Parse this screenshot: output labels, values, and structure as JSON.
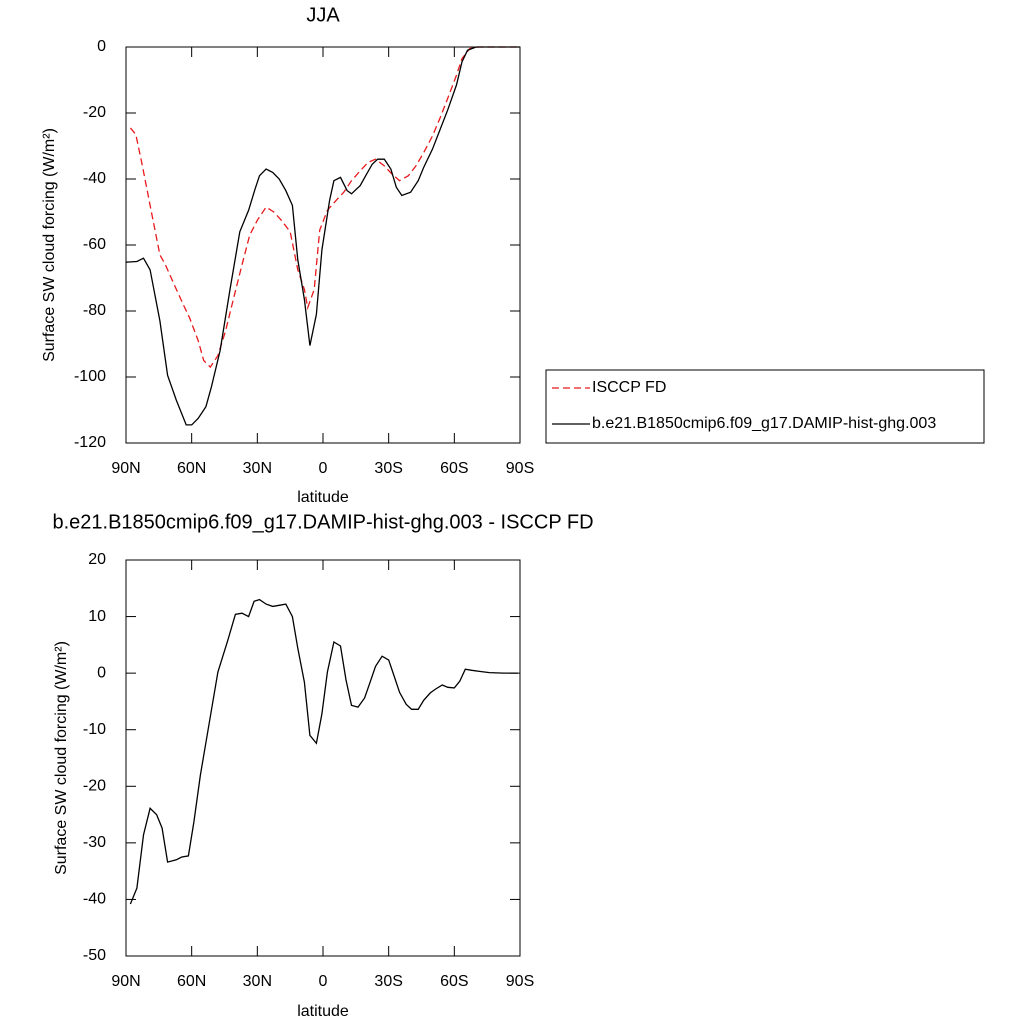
{
  "chart_data": [
    {
      "type": "line",
      "title": "JJA",
      "xlabel": "latitude",
      "ylabel": "Surface SW cloud forcing (W/m²)",
      "xlim": [
        90,
        -90
      ],
      "xticks": [
        {
          "value": 90,
          "label": "90N"
        },
        {
          "value": 60,
          "label": "60N"
        },
        {
          "value": 30,
          "label": "30N"
        },
        0,
        {
          "value": -30,
          "label": "30S"
        },
        {
          "value": -60,
          "label": "60S"
        },
        {
          "value": -90,
          "label": "90S"
        }
      ],
      "ylim": [
        -120,
        0
      ],
      "yticks": [
        -120,
        -100,
        -80,
        -60,
        -40,
        -20,
        0
      ],
      "legend": "right",
      "series": [
        {
          "name": "ISCCP FD",
          "color": "#e8191c",
          "dashed": true,
          "x": [
            88,
            85.5,
            82.5,
            79,
            74.5,
            72,
            68,
            63.5,
            61,
            57,
            54.5,
            51.5,
            48,
            44.5,
            41,
            37,
            33.5,
            30,
            26,
            22.5,
            19,
            15,
            11.5,
            8.5,
            7,
            4,
            1.5,
            -2,
            -6,
            -9.5,
            -13,
            -17,
            -20.5,
            -24,
            -28,
            -31.5,
            -35,
            -39,
            -42.5,
            -46,
            -50,
            -53.5,
            -57,
            -61,
            -63.5,
            -67,
            -71,
            -81,
            -90
          ],
          "values": [
            -24.5,
            -26.5,
            -36,
            -48,
            -63,
            -66,
            -72,
            -78.5,
            -82,
            -89,
            -95,
            -97,
            -93.5,
            -86,
            -76.5,
            -66,
            -57,
            -52.5,
            -48.5,
            -50,
            -52.5,
            -56,
            -67.5,
            -73.5,
            -79,
            -73.5,
            -55.5,
            -49.5,
            -46.5,
            -44,
            -40.5,
            -37.5,
            -35,
            -34,
            -36,
            -38.5,
            -40.5,
            -39,
            -36,
            -32,
            -27,
            -21.5,
            -15.5,
            -8.5,
            -3.5,
            -0.5,
            0,
            0,
            0
          ]
        },
        {
          "name": "b.e21.B1850cmip6.f09_g17.DAMIP-hist-ghg.003",
          "color": "#000000",
          "dashed": false,
          "x": [
            90,
            85,
            82,
            79,
            74.5,
            71,
            67,
            62.5,
            60,
            57,
            53.5,
            51,
            47,
            42.5,
            38,
            34,
            31,
            29,
            26,
            23,
            20,
            17,
            14,
            11.5,
            8.5,
            6,
            3,
            0.5,
            -3,
            -5,
            -8,
            -11,
            -13,
            -17,
            -19.5,
            -22.5,
            -25,
            -28,
            -31,
            -33.5,
            -36,
            -40,
            -43.5,
            -46,
            -50,
            -53.5,
            -57,
            -61,
            -63.5,
            -66,
            -70,
            -74.5,
            -81,
            -90
          ],
          "values": [
            -65.2,
            -65,
            -64,
            -67.5,
            -83,
            -99.5,
            -107,
            -114.5,
            -114.5,
            -112.5,
            -109,
            -103,
            -92,
            -73.5,
            -56,
            -49.5,
            -43,
            -39,
            -37,
            -38,
            -40,
            -43.5,
            -48,
            -64.5,
            -76.5,
            -90.5,
            -81,
            -61.5,
            -46.5,
            -40.5,
            -39.5,
            -43.5,
            -44.5,
            -42,
            -39,
            -35.5,
            -34,
            -34,
            -37,
            -42.5,
            -45,
            -44,
            -40.5,
            -36.5,
            -31,
            -25,
            -19,
            -11.5,
            -4.5,
            -1,
            0,
            0,
            0,
            0
          ]
        }
      ]
    },
    {
      "type": "line",
      "title": "b.e21.B1850cmip6.f09_g17.DAMIP-hist-ghg.003 - ISCCP FD",
      "xlabel": "latitude",
      "ylabel": "Surface SW cloud forcing (W/m²)",
      "xlim": [
        90,
        -90
      ],
      "xticks": [
        {
          "value": 90,
          "label": "90N"
        },
        {
          "value": 60,
          "label": "60N"
        },
        {
          "value": 30,
          "label": "30N"
        },
        0,
        {
          "value": -30,
          "label": "30S"
        },
        {
          "value": -60,
          "label": "60S"
        },
        {
          "value": -90,
          "label": "90S"
        }
      ],
      "ylim": [
        -50,
        20
      ],
      "yticks": [
        -50,
        -40,
        -30,
        -20,
        -10,
        0,
        10,
        20
      ],
      "series": [
        {
          "color": "#000000",
          "dashed": false,
          "x": [
            88,
            85,
            82,
            79,
            76,
            73.5,
            71,
            67,
            64.5,
            61.5,
            59,
            56,
            52.5,
            48,
            43.5,
            40,
            37,
            34,
            31.5,
            29,
            26,
            23,
            20,
            17,
            14,
            11.5,
            8.5,
            6,
            3,
            0.5,
            -2,
            -5,
            -8,
            -10.5,
            -13,
            -16,
            -19,
            -21.5,
            -24,
            -27,
            -30,
            -32.5,
            -35,
            -38,
            -40.5,
            -43.5,
            -46,
            -49,
            -51.5,
            -54.5,
            -57,
            -60,
            -62.5,
            -65,
            -68,
            -71.5,
            -76,
            -82.5,
            -89
          ],
          "values": [
            -40.8,
            -38,
            -28.6,
            -23.9,
            -25,
            -27.4,
            -33.4,
            -33,
            -32.5,
            -32.3,
            -26.3,
            -18,
            -10,
            0.2,
            5.8,
            10.4,
            10.6,
            10,
            12.7,
            13,
            12.2,
            11.8,
            12,
            12.2,
            10,
            4.4,
            -1.6,
            -11,
            -12.4,
            -7.2,
            0.2,
            5.5,
            4.8,
            -1.2,
            -5.7,
            -6,
            -4.4,
            -1.6,
            1.2,
            3,
            2.3,
            -0.5,
            -3.4,
            -5.5,
            -6.4,
            -6.4,
            -4.8,
            -3.5,
            -2.8,
            -2.1,
            -2.5,
            -2.6,
            -1.4,
            0.7,
            0.5,
            0.3,
            0.1,
            0,
            0
          ]
        }
      ]
    }
  ]
}
